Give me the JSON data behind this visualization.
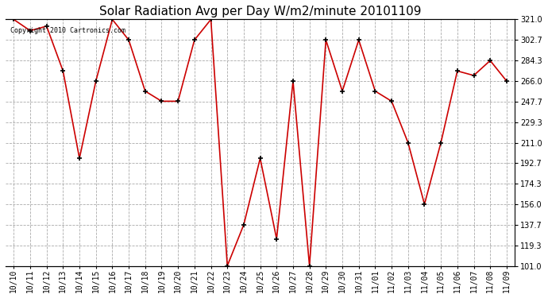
{
  "title": "Solar Radiation Avg per Day W/m2/minute 20101109",
  "copyright_text": "Copyright 2010 Cartronics.com",
  "x_labels": [
    "10/10",
    "10/11",
    "10/12",
    "10/13",
    "10/14",
    "10/15",
    "10/16",
    "10/17",
    "10/18",
    "10/19",
    "10/20",
    "10/21",
    "10/22",
    "10/23",
    "10/24",
    "10/25",
    "10/26",
    "10/27",
    "10/28",
    "10/29",
    "10/30",
    "10/31",
    "11/01",
    "11/02",
    "11/03",
    "11/04",
    "11/05",
    "11/06",
    "11/07",
    "11/08",
    "11/09"
  ],
  "y_values": [
    321.0,
    311.0,
    315.0,
    275.0,
    197.0,
    266.0,
    321.0,
    302.7,
    257.0,
    248.0,
    248.0,
    302.7,
    321.0,
    101.0,
    137.7,
    197.0,
    125.0,
    266.0,
    101.0,
    302.7,
    257.0,
    302.7,
    257.0,
    248.0,
    211.0,
    156.0,
    211.0,
    275.0,
    271.0,
    284.3,
    266.0
  ],
  "y_min": 101.0,
  "y_max": 321.0,
  "y_ticks": [
    101.0,
    119.3,
    137.7,
    156.0,
    174.3,
    192.7,
    211.0,
    229.3,
    247.7,
    266.0,
    284.3,
    302.7,
    321.0
  ],
  "line_color": "#cc0000",
  "marker_color": "#000000",
  "bg_color": "#ffffff",
  "grid_color": "#aaaaaa",
  "title_fontsize": 11,
  "tick_fontsize": 7,
  "copyright_fontsize": 6
}
